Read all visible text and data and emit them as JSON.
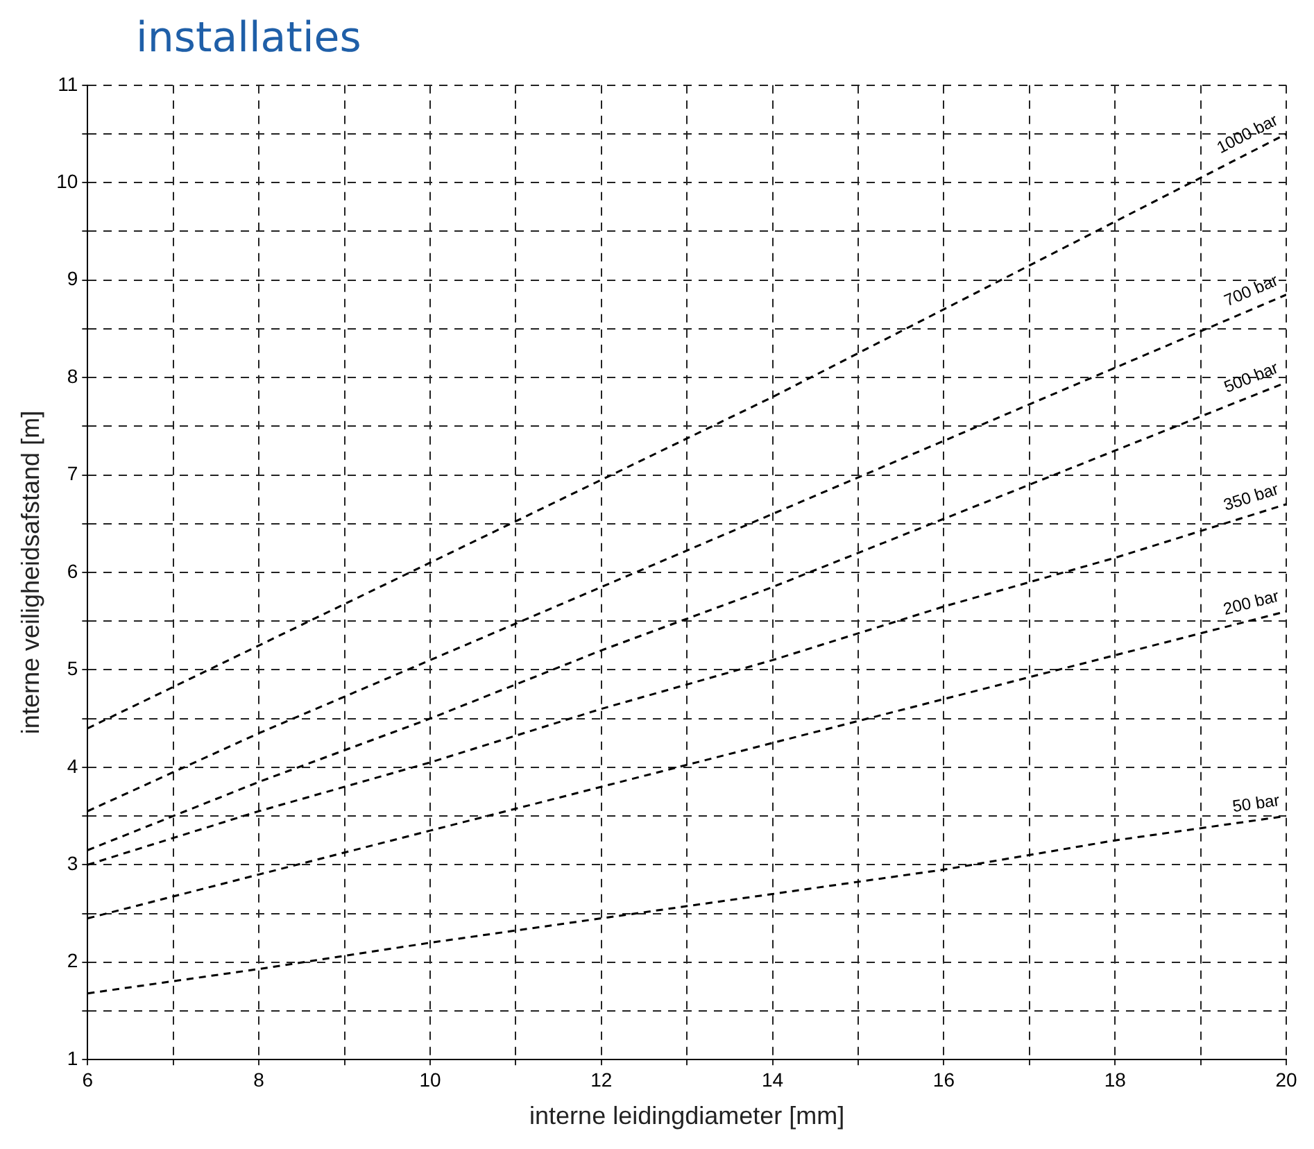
{
  "chart_data": {
    "type": "line",
    "title": "installaties",
    "xlabel": "interne leidingdiameter [mm]",
    "ylabel": "interne veiligheidsafstand [m]",
    "x": [
      6,
      8,
      10,
      12,
      14,
      16,
      18,
      20
    ],
    "series": [
      {
        "name": "1000 bar",
        "color": "#000000",
        "values": [
          4.4,
          5.25,
          6.1,
          6.95,
          7.8,
          8.7,
          9.6,
          10.5
        ]
      },
      {
        "name": "700 bar",
        "color": "#000000",
        "values": [
          3.55,
          4.35,
          5.1,
          5.85,
          6.6,
          7.35,
          8.1,
          8.85
        ]
      },
      {
        "name": "500 bar",
        "color": "#000000",
        "values": [
          3.15,
          3.85,
          4.5,
          5.2,
          5.85,
          6.55,
          7.25,
          7.95
        ]
      },
      {
        "name": "350 bar",
        "color": "#000000",
        "values": [
          3.0,
          3.55,
          4.05,
          4.6,
          5.1,
          5.65,
          6.15,
          6.7
        ]
      },
      {
        "name": "200 bar",
        "color": "#000000",
        "values": [
          2.45,
          2.9,
          3.35,
          3.8,
          4.25,
          4.7,
          5.15,
          5.6
        ]
      },
      {
        "name": "50 bar",
        "color": "#000000",
        "values": [
          1.68,
          1.93,
          2.2,
          2.45,
          2.7,
          2.95,
          3.25,
          3.5
        ]
      }
    ],
    "xlim": [
      6,
      20
    ],
    "xticks": [
      6,
      {
        "value": 7,
        "label": null
      },
      8,
      {
        "value": 9,
        "label": null
      },
      10,
      {
        "value": 11,
        "label": null
      },
      12,
      {
        "value": 13,
        "label": null
      },
      14,
      {
        "value": 15,
        "label": null
      },
      16,
      {
        "value": 17,
        "label": null
      },
      18,
      {
        "value": 19,
        "label": null
      },
      20
    ],
    "ylim": [
      1,
      11
    ],
    "yticks": [
      1,
      {
        "value": 1.5,
        "label": null
      },
      2,
      {
        "value": 2.5,
        "label": null
      },
      3,
      {
        "value": 3.5,
        "label": null
      },
      4,
      {
        "value": 4.5,
        "label": null
      },
      5,
      {
        "value": 5.5,
        "label": null
      },
      6,
      {
        "value": 6.5,
        "label": null
      },
      7,
      {
        "value": 7.5,
        "label": null
      },
      8,
      {
        "value": 8.5,
        "label": null
      },
      9,
      {
        "value": 9.5,
        "label": null
      },
      10,
      {
        "value": 10.5,
        "label": null
      },
      11
    ],
    "grid": true,
    "legend": false,
    "marker": "none",
    "line_style": "dashed"
  }
}
